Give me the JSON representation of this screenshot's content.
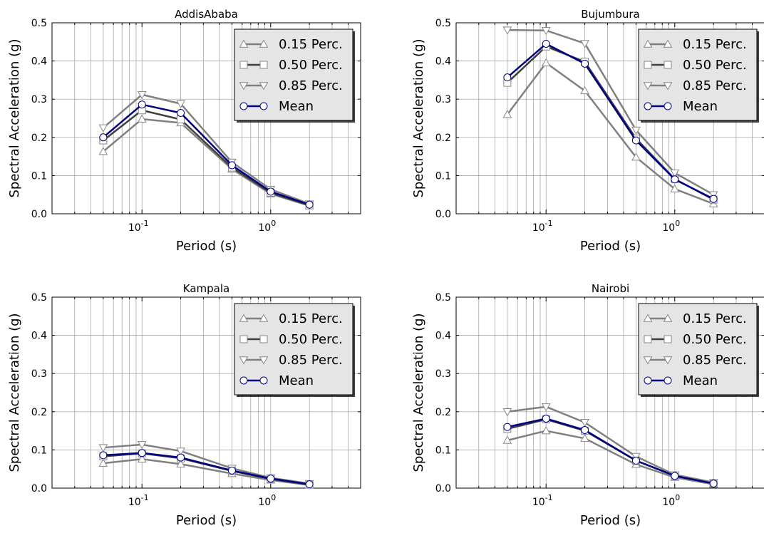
{
  "figure": {
    "background": "#ffffff"
  },
  "styles": {
    "series_colors": {
      "p15": "#808080",
      "p50": "#404040",
      "p85": "#808080",
      "mean": "#000080"
    },
    "marker_fills": {
      "p15": "#ffffff",
      "p50": "#ffffff",
      "p85": "#ffffff",
      "mean": "#ffffff"
    },
    "marker_shapes": {
      "p15": "triangle-up",
      "p50": "square",
      "p85": "triangle-down",
      "mean": "circle"
    },
    "legend_bg": "#e5e5e5",
    "grid_color": "#999999"
  },
  "chart_data": [
    {
      "type": "line",
      "title": "AddisAbaba",
      "xlabel": "Period (s)",
      "ylabel": "Spectral Acceleration (g)",
      "xscale": "log",
      "xlim": [
        0.02,
        5
      ],
      "ylim": [
        0,
        0.5
      ],
      "yticks": [
        "0.0",
        "0.1",
        "0.2",
        "0.3",
        "0.4",
        "0.5"
      ],
      "xticks": [
        {
          "value": 0.1,
          "base": "10",
          "exp": "-1"
        },
        {
          "value": 1,
          "base": "10",
          "exp": "0"
        }
      ],
      "grid": true,
      "legend_position": "top-right",
      "x": [
        0.05,
        0.1,
        0.2,
        0.5,
        1.0,
        2.0
      ],
      "series": [
        {
          "key": "p15",
          "name": "0.15 Perc.",
          "values": [
            0.163,
            0.248,
            0.238,
            0.117,
            0.052,
            0.021
          ]
        },
        {
          "key": "p50",
          "name": "0.50 Perc.",
          "values": [
            0.192,
            0.271,
            0.247,
            0.121,
            0.055,
            0.022
          ]
        },
        {
          "key": "p85",
          "name": "0.85 Perc.",
          "values": [
            0.225,
            0.312,
            0.288,
            0.135,
            0.064,
            0.026
          ]
        },
        {
          "key": "mean",
          "name": "Mean",
          "values": [
            0.2,
            0.286,
            0.264,
            0.127,
            0.058,
            0.024
          ]
        }
      ]
    },
    {
      "type": "line",
      "title": "Bujumbura",
      "xlabel": "Period (s)",
      "ylabel": "Spectral Acceleration (g)",
      "xscale": "log",
      "xlim": [
        0.02,
        5
      ],
      "ylim": [
        0,
        0.5
      ],
      "yticks": [
        "0.0",
        "0.1",
        "0.2",
        "0.3",
        "0.4",
        "0.5"
      ],
      "xticks": [
        {
          "value": 0.1,
          "base": "10",
          "exp": "-1"
        },
        {
          "value": 1,
          "base": "10",
          "exp": "0"
        }
      ],
      "grid": true,
      "legend_position": "top-right",
      "x": [
        0.05,
        0.1,
        0.2,
        0.5,
        1.0,
        2.0
      ],
      "series": [
        {
          "key": "p15",
          "name": "0.15 Perc.",
          "values": [
            0.26,
            0.395,
            0.322,
            0.148,
            0.065,
            0.026
          ]
        },
        {
          "key": "p50",
          "name": "0.50 Perc.",
          "values": [
            0.343,
            0.438,
            0.398,
            0.197,
            0.091,
            0.037
          ]
        },
        {
          "key": "p85",
          "name": "0.85 Perc.",
          "values": [
            0.481,
            0.48,
            0.446,
            0.219,
            0.107,
            0.05
          ]
        },
        {
          "key": "mean",
          "name": "Mean",
          "values": [
            0.357,
            0.445,
            0.393,
            0.192,
            0.09,
            0.039
          ]
        }
      ]
    },
    {
      "type": "line",
      "title": "Kampala",
      "xlabel": "Period (s)",
      "ylabel": "Spectral Acceleration (g)",
      "xscale": "log",
      "xlim": [
        0.02,
        5
      ],
      "ylim": [
        0,
        0.5
      ],
      "yticks": [
        "0.0",
        "0.1",
        "0.2",
        "0.3",
        "0.4",
        "0.5"
      ],
      "xticks": [
        {
          "value": 0.1,
          "base": "10",
          "exp": "-1"
        },
        {
          "value": 1,
          "base": "10",
          "exp": "0"
        }
      ],
      "grid": true,
      "legend_position": "top-right",
      "x": [
        0.05,
        0.1,
        0.2,
        0.5,
        1.0,
        2.0
      ],
      "series": [
        {
          "key": "p15",
          "name": "0.15 Perc.",
          "values": [
            0.065,
            0.076,
            0.063,
            0.038,
            0.021,
            0.008
          ]
        },
        {
          "key": "p50",
          "name": "0.50 Perc.",
          "values": [
            0.083,
            0.091,
            0.078,
            0.045,
            0.024,
            0.009
          ]
        },
        {
          "key": "p85",
          "name": "0.85 Perc.",
          "values": [
            0.106,
            0.114,
            0.097,
            0.052,
            0.027,
            0.012
          ]
        },
        {
          "key": "mean",
          "name": "Mean",
          "values": [
            0.086,
            0.092,
            0.08,
            0.046,
            0.025,
            0.01
          ]
        }
      ]
    },
    {
      "type": "line",
      "title": "Nairobi",
      "xlabel": "Period (s)",
      "ylabel": "Spectral Acceleration (g)",
      "xscale": "log",
      "xlim": [
        0.02,
        5
      ],
      "ylim": [
        0,
        0.5
      ],
      "yticks": [
        "0.0",
        "0.1",
        "0.2",
        "0.3",
        "0.4",
        "0.5"
      ],
      "xticks": [
        {
          "value": 0.1,
          "base": "10",
          "exp": "-1"
        },
        {
          "value": 1,
          "base": "10",
          "exp": "0"
        }
      ],
      "grid": true,
      "legend_position": "top-right",
      "x": [
        0.05,
        0.1,
        0.2,
        0.5,
        1.0,
        2.0
      ],
      "series": [
        {
          "key": "p15",
          "name": "0.15 Perc.",
          "values": [
            0.125,
            0.15,
            0.13,
            0.062,
            0.028,
            0.01
          ]
        },
        {
          "key": "p50",
          "name": "0.50 Perc.",
          "values": [
            0.155,
            0.18,
            0.15,
            0.072,
            0.032,
            0.012
          ]
        },
        {
          "key": "p85",
          "name": "0.85 Perc.",
          "values": [
            0.2,
            0.213,
            0.172,
            0.083,
            0.035,
            0.015
          ]
        },
        {
          "key": "mean",
          "name": "Mean",
          "values": [
            0.16,
            0.182,
            0.152,
            0.072,
            0.032,
            0.012
          ]
        }
      ]
    }
  ]
}
